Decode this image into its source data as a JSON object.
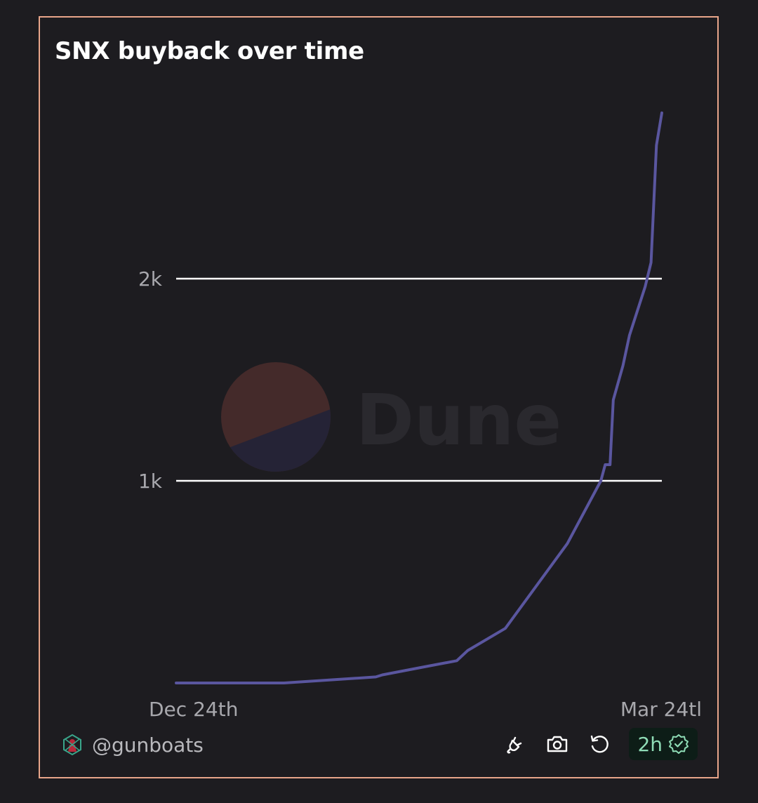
{
  "title": "SNX buyback over time",
  "footer": {
    "username": "@gunboats",
    "freshness": "2h",
    "watermark": "Dune"
  },
  "icons": {
    "avatar": "user-avatar",
    "embed": "plug-icon",
    "screenshot": "camera-icon",
    "refresh": "refresh-icon",
    "verified": "verified-badge-icon"
  },
  "colors": {
    "line": "#5a569f",
    "accent": "#e8a58a",
    "badge_text": "#8fdcb6"
  },
  "chart_data": {
    "type": "line",
    "title": "SNX buyback over time",
    "xlabel": "",
    "ylabel": "",
    "x_ticks": [
      "Dec 24th",
      "Mar 24tl"
    ],
    "y_ticks": [
      {
        "value": 1000,
        "label": "1k"
      },
      {
        "value": 2000,
        "label": "2k"
      }
    ],
    "xlim": [
      0,
      90
    ],
    "ylim": [
      0,
      2800
    ],
    "grid": "y",
    "legend": "none",
    "series": [
      {
        "values": [
          [
            0,
            0
          ],
          [
            20,
            0
          ],
          [
            37,
            30
          ],
          [
            38.2,
            40
          ],
          [
            46,
            80
          ],
          [
            52,
            110
          ],
          [
            54,
            160
          ],
          [
            61,
            270
          ],
          [
            72.5,
            690
          ],
          [
            78.7,
            1000
          ],
          [
            79.5,
            1080
          ],
          [
            80.4,
            1080
          ],
          [
            81,
            1400
          ],
          [
            82.8,
            1570
          ],
          [
            84,
            1720
          ],
          [
            86.9,
            1960
          ],
          [
            88,
            2080
          ],
          [
            89,
            2660
          ],
          [
            90,
            2820
          ]
        ]
      }
    ]
  }
}
